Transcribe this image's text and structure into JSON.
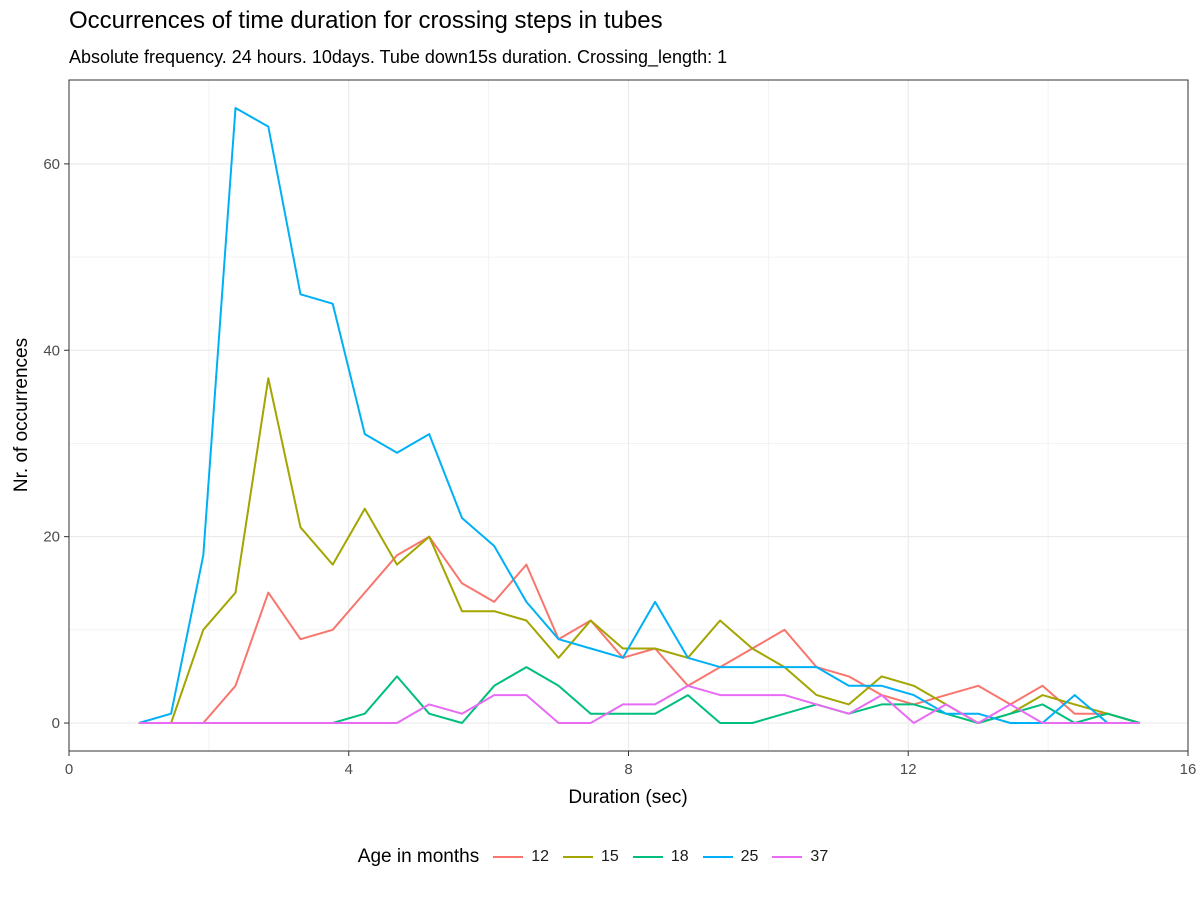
{
  "chart_data": {
    "type": "line",
    "title": "Occurrences of time duration for crossing steps in tubes",
    "subtitle": "Absolute frequency. 24 hours. 10days. Tube down15s duration. Crossing_length: 1",
    "xlabel": "Duration (sec)",
    "ylabel": "Nr. of occurrences",
    "xlim": [
      0,
      16
    ],
    "ylim": [
      -3,
      69
    ],
    "xticks": [
      0,
      4,
      8,
      12,
      16
    ],
    "yticks": [
      0,
      20,
      40,
      60
    ],
    "grid": true,
    "legend": {
      "title": "Age in months",
      "placement": "bottom"
    },
    "x": [
      1.0,
      1.46,
      1.92,
      2.38,
      2.85,
      3.31,
      3.77,
      4.23,
      4.69,
      5.15,
      5.62,
      6.08,
      6.54,
      7.0,
      7.46,
      7.92,
      8.38,
      8.85,
      9.31,
      9.77,
      10.23,
      10.69,
      11.15,
      11.62,
      12.08,
      12.54,
      13.0,
      13.46,
      13.92,
      14.38,
      14.85,
      15.31
    ],
    "series": [
      {
        "name": "12",
        "color": "#F8766D",
        "values": [
          0,
          0,
          0,
          4,
          14,
          9,
          10,
          14,
          18,
          20,
          15,
          13,
          17,
          9,
          11,
          7,
          8,
          4,
          6,
          8,
          10,
          6,
          5,
          3,
          2,
          3,
          4,
          2,
          4,
          1,
          1,
          0
        ]
      },
      {
        "name": "15",
        "color": "#A3A500",
        "values": [
          0,
          0,
          10,
          14,
          37,
          21,
          17,
          23,
          17,
          20,
          12,
          12,
          11,
          7,
          11,
          8,
          8,
          7,
          11,
          8,
          6,
          3,
          2,
          5,
          4,
          2,
          0,
          1,
          3,
          2,
          1,
          0
        ]
      },
      {
        "name": "18",
        "color": "#00BF7D",
        "values": [
          0,
          0,
          0,
          0,
          0,
          0,
          0,
          1,
          5,
          1,
          0,
          4,
          6,
          4,
          1,
          1,
          1,
          3,
          0,
          0,
          1,
          2,
          1,
          2,
          2,
          1,
          0,
          1,
          2,
          0,
          1,
          0
        ]
      },
      {
        "name": "25",
        "color": "#00B0F6",
        "values": [
          0,
          1,
          18,
          66,
          64,
          46,
          45,
          31,
          29,
          31,
          22,
          19,
          13,
          9,
          8,
          7,
          13,
          7,
          6,
          6,
          6,
          6,
          4,
          4,
          3,
          1,
          1,
          0,
          0,
          3,
          0,
          0
        ]
      },
      {
        "name": "37",
        "color": "#E76BF3",
        "values": [
          0,
          0,
          0,
          0,
          0,
          0,
          0,
          0,
          0,
          2,
          1,
          3,
          3,
          0,
          0,
          2,
          2,
          4,
          3,
          3,
          3,
          2,
          1,
          3,
          0,
          2,
          0,
          2,
          0,
          0,
          0,
          0
        ]
      }
    ]
  }
}
